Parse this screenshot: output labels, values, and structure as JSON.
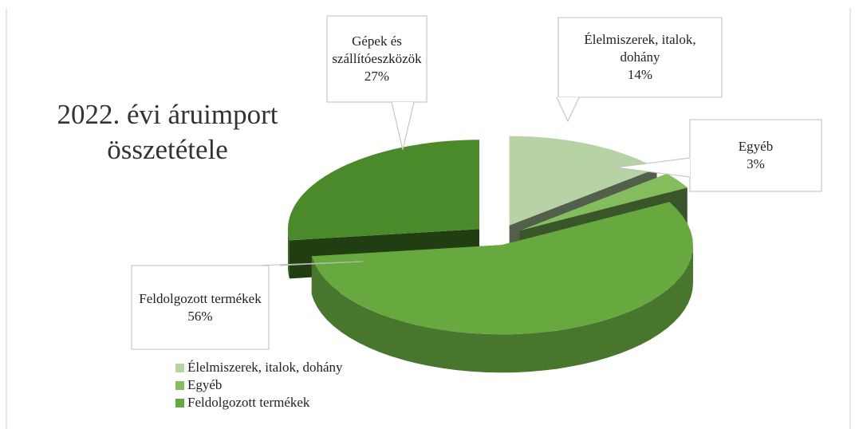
{
  "chart_data": {
    "type": "pie",
    "title": "2022. évi áruimport összetétele",
    "categories": [
      "Élelmiszerek, italok, dohány",
      "Egyéb",
      "Feldolgozott termékek",
      "Gépek és szállítóeszközök"
    ],
    "values": [
      14,
      3,
      56,
      27
    ],
    "value_labels": [
      "14%",
      "3%",
      "56%",
      "27%"
    ],
    "colors": [
      "#b7d3a6",
      "#84bd5e",
      "#67a83f",
      "#4a8a2a"
    ],
    "legend": "bottom-left"
  }
}
